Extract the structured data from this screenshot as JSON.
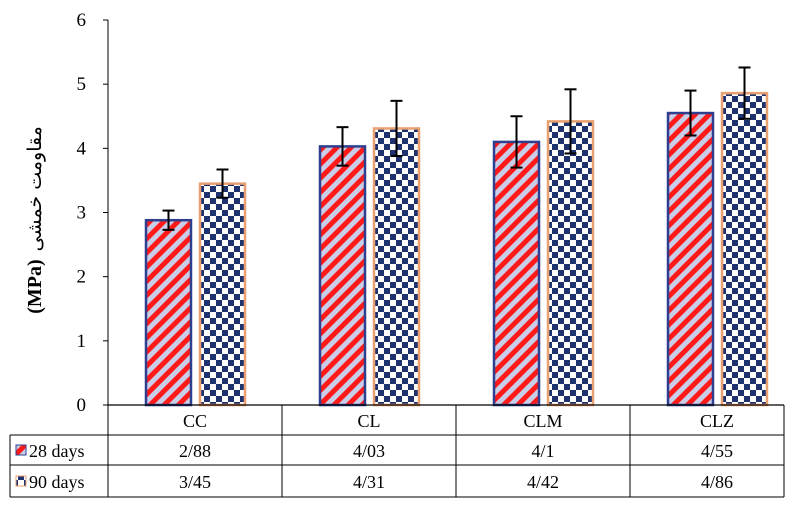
{
  "chart_data": {
    "type": "bar",
    "categories": [
      "CC",
      "CL",
      "CLM",
      "CLZ"
    ],
    "ylabel_prefix": "(MPa)",
    "ylabel_text": "مقاومت خمشی",
    "ylim": [
      0,
      6
    ],
    "yticks": [
      "0",
      "1",
      "2",
      "3",
      "4",
      "5",
      "6"
    ],
    "grid": false,
    "legend": "data-table",
    "series": [
      {
        "name": "28 days",
        "values": [
          2.88,
          4.03,
          4.1,
          4.55
        ],
        "errors": [
          0.15,
          0.3,
          0.4,
          0.35
        ],
        "table_values": [
          "2/88",
          "4/03",
          "4/1",
          "4/55"
        ],
        "pattern": "diagonal-stripe",
        "color_main": "#ff1a1a",
        "color_alt": "#c9cde8",
        "border": "#2e3f8f"
      },
      {
        "name": "90 days",
        "values": [
          3.45,
          4.31,
          4.42,
          4.86
        ],
        "errors": [
          0.22,
          0.43,
          0.5,
          0.4
        ],
        "table_values": [
          "3/45",
          "4/31",
          "4/42",
          "4/86"
        ],
        "pattern": "checkerboard",
        "color_main": "#1f3270",
        "color_alt": "#ffffff",
        "border": "#e8a070"
      }
    ]
  }
}
